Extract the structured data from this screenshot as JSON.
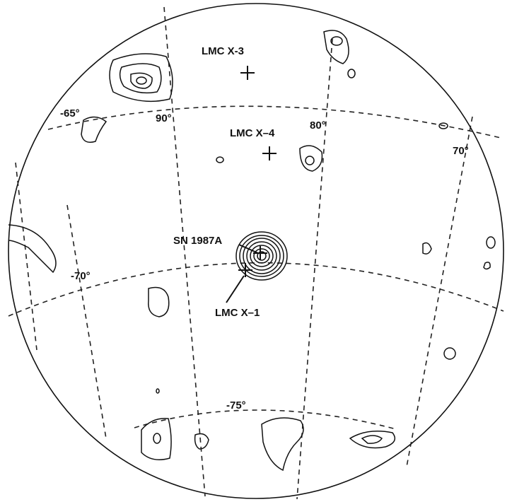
{
  "sources": {
    "lmc_x3": "LMC X-3",
    "lmc_x4": "LMC X–4",
    "sn1987a": "SN 1987A",
    "lmc_x1": "LMC X–1"
  },
  "latitude_labels": {
    "lat65": "-65°",
    "lat70": "-70°",
    "lat75": "-75°"
  },
  "longitude_labels": {
    "lon90": "90°",
    "lon80": "80°",
    "lon70": "70°"
  }
}
